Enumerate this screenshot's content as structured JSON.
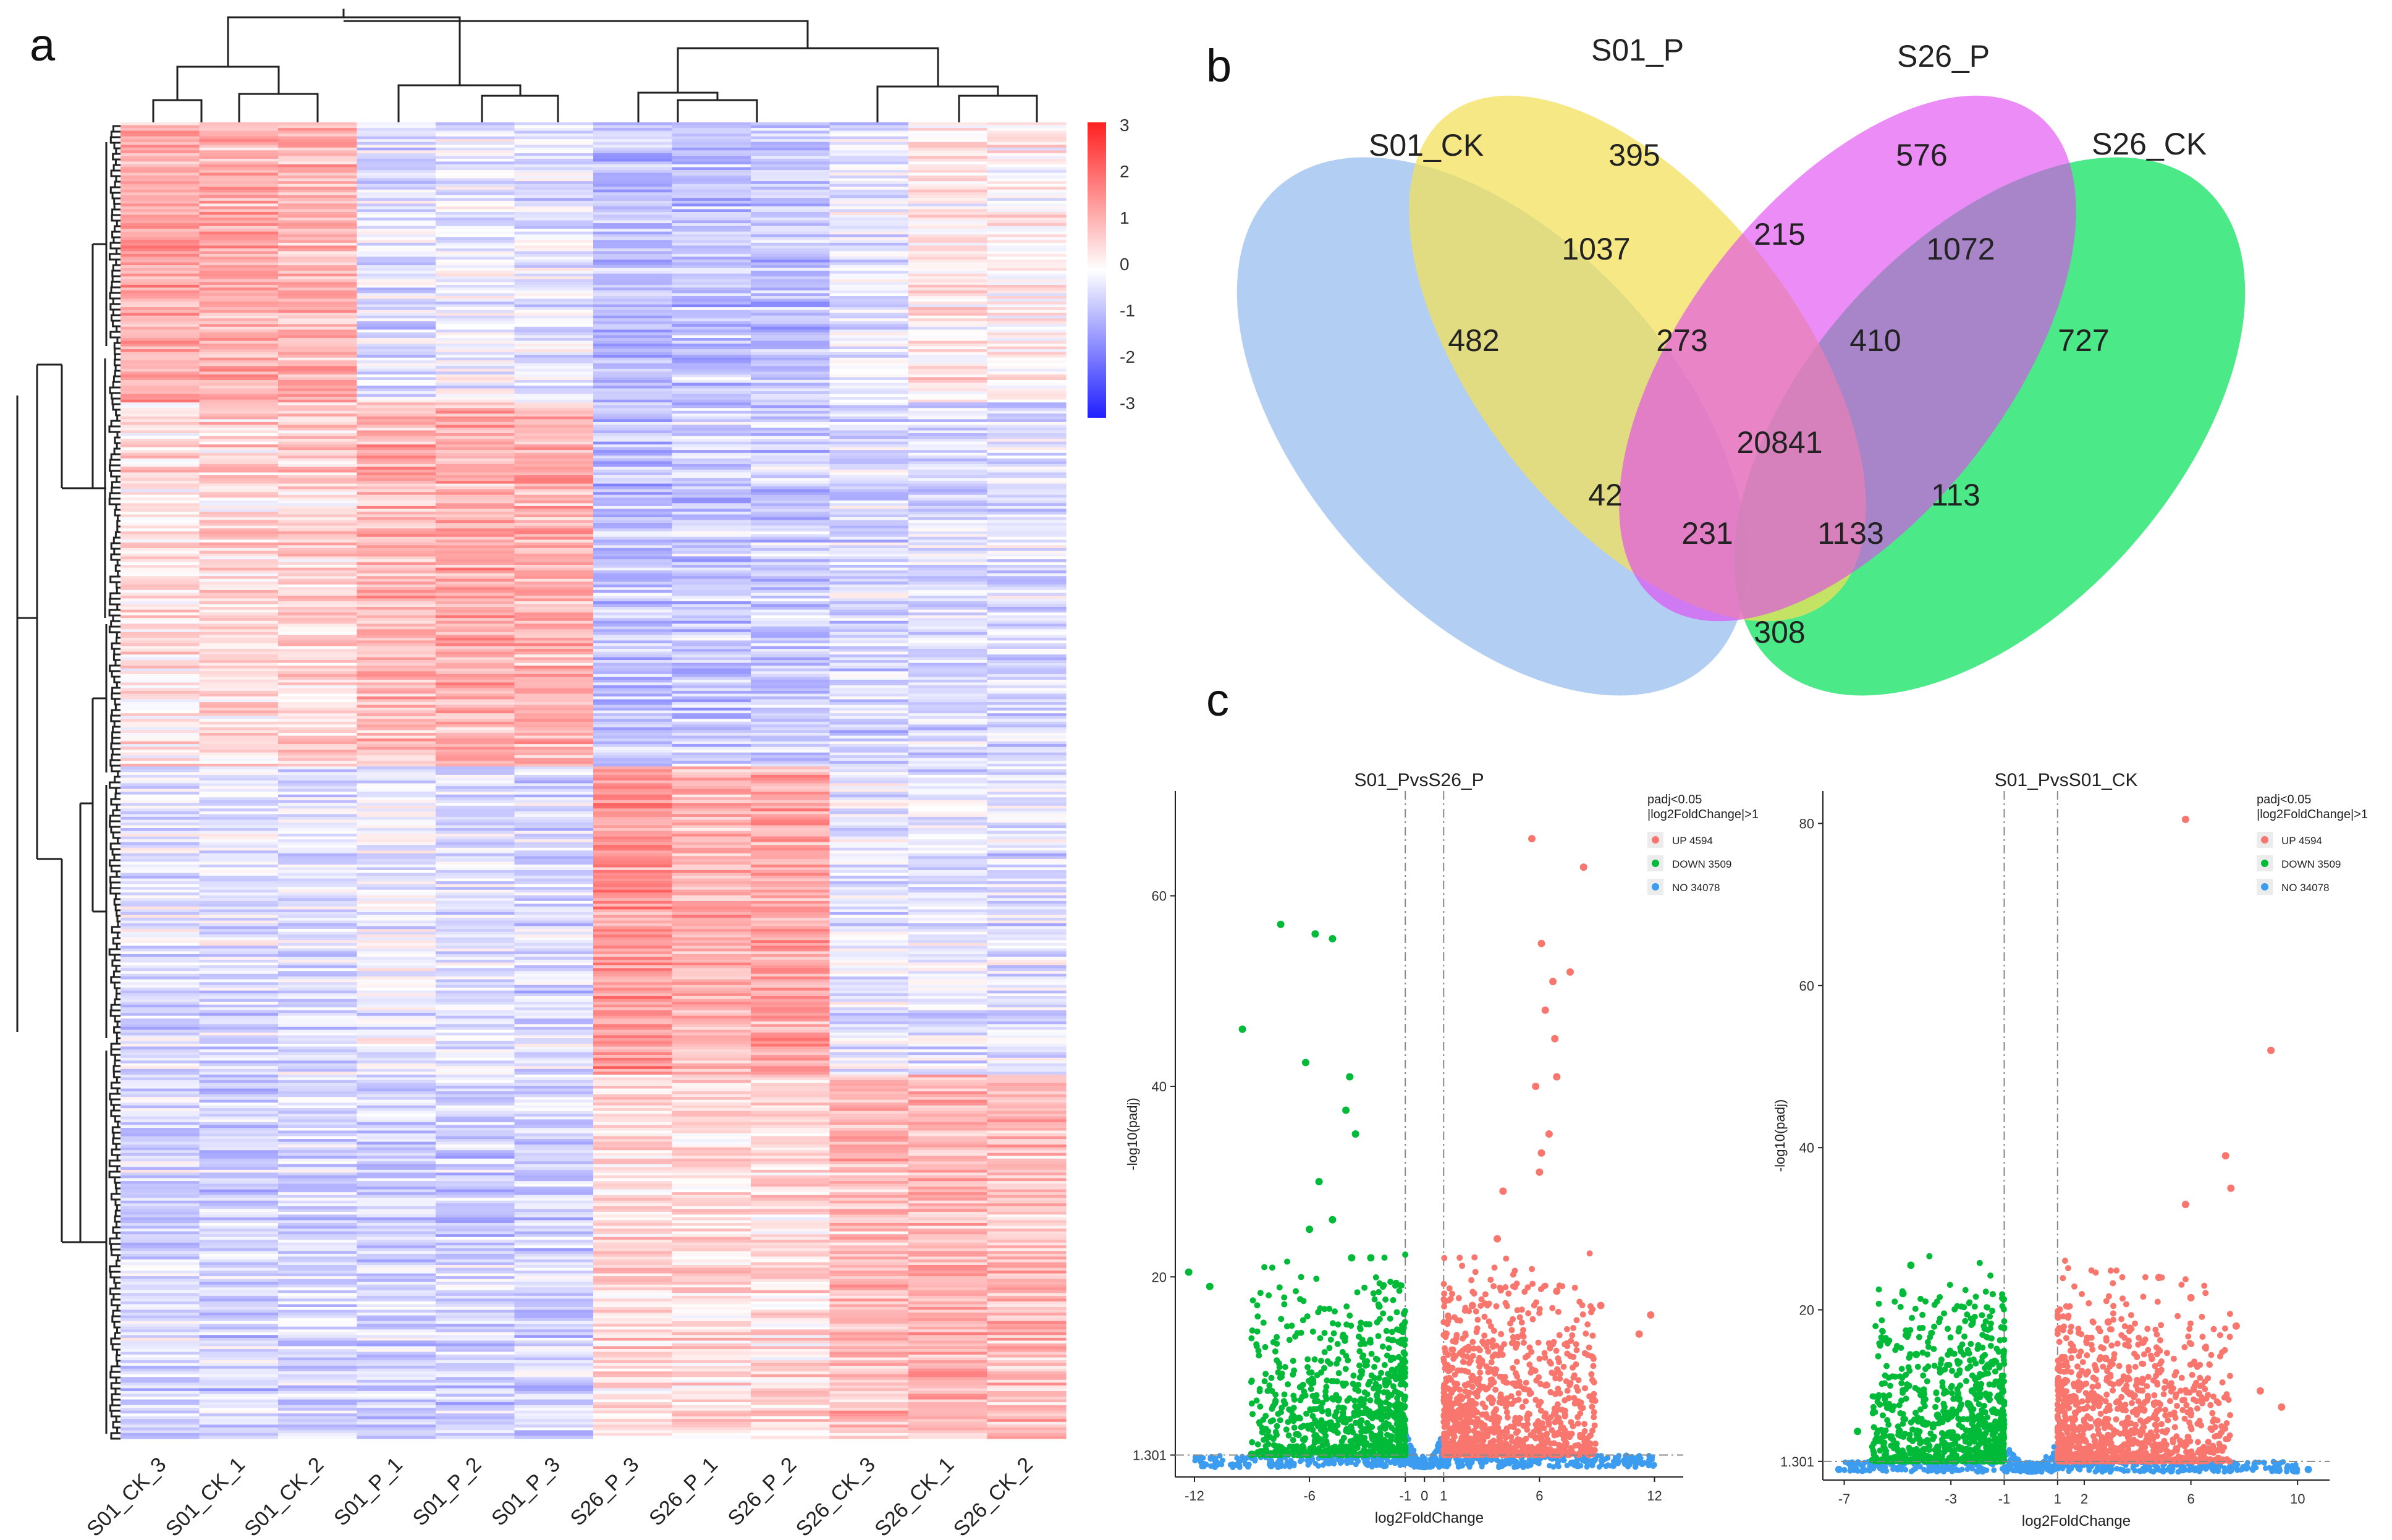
{
  "figure": {
    "panel_a": "a",
    "panel_b": "b",
    "panel_c": "c"
  },
  "chart_data": [
    {
      "type": "heatmap",
      "title": "",
      "samples": [
        "S01_CK_3",
        "S01_CK_1",
        "S01_CK_2",
        "S01_P_1",
        "S01_P_2",
        "S01_P_3",
        "S26_P_3",
        "S26_P_1",
        "S26_P_2",
        "S26_CK_3",
        "S26_CK_1",
        "S26_CK_2"
      ],
      "color_scale": {
        "min": -3,
        "max": 3,
        "ticks": [
          "3",
          "2",
          "1",
          "0",
          "-1",
          "-2",
          "-3"
        ],
        "low": "#1f1fff",
        "mid": "#ffffff",
        "high": "#ff2020"
      },
      "row_blocks": [
        {
          "name": "S01_CK high",
          "rows": 200,
          "values": [
            1.2,
            1.1,
            1.0,
            -0.4,
            -0.2,
            -0.3,
            -0.9,
            -0.8,
            -0.8,
            -0.3,
            0.3,
            0.2
          ]
        },
        {
          "name": "S01_P high",
          "rows": 260,
          "values": [
            0.4,
            0.5,
            0.6,
            1.0,
            1.1,
            1.0,
            -0.8,
            -0.7,
            -0.7,
            -0.5,
            -0.4,
            -0.4
          ]
        },
        {
          "name": "S26_P high",
          "rows": 220,
          "values": [
            -0.4,
            -0.4,
            -0.4,
            -0.2,
            -0.4,
            -0.5,
            1.4,
            1.0,
            1.2,
            -0.3,
            -0.4,
            -0.4
          ]
        },
        {
          "name": "S26_CK high",
          "rows": 260,
          "values": [
            -0.5,
            -0.6,
            -0.5,
            -0.6,
            -0.6,
            -0.6,
            0.5,
            0.5,
            0.5,
            0.9,
            1.0,
            0.9
          ]
        }
      ],
      "dendrogram": "hierarchical clustering of samples (top) and genes (left)"
    },
    {
      "type": "venn",
      "sets": [
        "S01_CK",
        "S01_P",
        "S26_P",
        "S26_CK"
      ],
      "regions": [
        {
          "sets": [
            "S01_CK"
          ],
          "value": "482"
        },
        {
          "sets": [
            "S01_P"
          ],
          "value": "395"
        },
        {
          "sets": [
            "S26_P"
          ],
          "value": "576"
        },
        {
          "sets": [
            "S26_CK"
          ],
          "value": "727"
        },
        {
          "sets": [
            "S01_CK",
            "S01_P"
          ],
          "value": "1037"
        },
        {
          "sets": [
            "S01_P",
            "S26_P"
          ],
          "value": "215"
        },
        {
          "sets": [
            "S26_P",
            "S26_CK"
          ],
          "value": "1072"
        },
        {
          "sets": [
            "S01_CK",
            "S01_P",
            "S26_P"
          ],
          "value": "273"
        },
        {
          "sets": [
            "S01_P",
            "S26_P",
            "S26_CK"
          ],
          "value": "410"
        },
        {
          "sets": [
            "S01_CK",
            "S01_P",
            "S26_P",
            "S26_CK"
          ],
          "value": "20841"
        },
        {
          "sets": [
            "S01_CK",
            "S26_P"
          ],
          "value": "42"
        },
        {
          "sets": [
            "S01_P",
            "S26_CK"
          ],
          "value": "113"
        },
        {
          "sets": [
            "S01_CK",
            "S26_P",
            "S26_CK"
          ],
          "value": "231"
        },
        {
          "sets": [
            "S01_CK",
            "S01_P",
            "S26_CK"
          ],
          "value": "1133"
        },
        {
          "sets": [
            "S01_CK",
            "S26_CK"
          ],
          "value": "308"
        }
      ],
      "colors": {
        "S01_CK": "#a9c6f0",
        "S01_P": "#f3e46e",
        "S26_P": "#e35ef2",
        "S26_CK": "#37e86e"
      }
    },
    {
      "type": "scatter",
      "title": "S01_PvsS26_P",
      "xlabel": "log2FoldChange",
      "ylabel": "-log10(padj)",
      "xlim": [
        -13,
        13.5
      ],
      "ylim": [
        -1,
        71
      ],
      "xticks": [
        -12,
        -6,
        -1,
        0,
        1,
        6,
        12
      ],
      "yticks": [
        1.301,
        20,
        40,
        60
      ],
      "ytick_labels": [
        "1.301",
        "20",
        "40",
        "60"
      ],
      "fc_threshold": 1,
      "padj_threshold": 1.301,
      "legend": {
        "title_line1": "padj<0.05",
        "title_line2": "|log2FoldChange|>1",
        "entries": [
          "UP 4594",
          "DOWN 3509",
          "NO 34078"
        ]
      },
      "series": [
        {
          "name": "UP",
          "count": 4594,
          "color": "#f8766d",
          "x": [
            5.6,
            6.1,
            8.3,
            7.6,
            6.7,
            6.3,
            6.8,
            6.9,
            5.8,
            6.5,
            6.1,
            6.0,
            9.2,
            11.8,
            11.2,
            6.9,
            4.1,
            3.8,
            2.5
          ],
          "y": [
            66.0,
            55.0,
            63.0,
            52.0,
            51.0,
            48.0,
            45.0,
            41.0,
            40.0,
            35.0,
            33.0,
            31.0,
            17.0,
            16.0,
            14.0,
            18.5,
            29.0,
            24.0,
            17.0
          ]
        },
        {
          "name": "DOWN",
          "count": 3509,
          "color": "#00ba38",
          "x": [
            -7.5,
            -5.7,
            -4.8,
            -9.5,
            -6.2,
            -3.9,
            -4.1,
            -3.6,
            -12.3,
            -11.2,
            -5.5,
            -4.8,
            -3.8,
            -2.8,
            -6.0
          ],
          "y": [
            57.0,
            56.0,
            55.5,
            46.0,
            42.5,
            41.0,
            37.5,
            35.0,
            20.5,
            19.0,
            30.0,
            26.0,
            22.0,
            22.0,
            25.0
          ]
        },
        {
          "name": "NO",
          "count": 34078,
          "color": "#3b9cf0",
          "x": [
            -11.5,
            -8.0,
            -5.0,
            -3.0,
            -1.0,
            0.2,
            1.0,
            3.0,
            5.0,
            8.0,
            10.5
          ],
          "y": [
            0.3,
            0.2,
            0.5,
            0.4,
            0.5,
            0.2,
            0.4,
            0.5,
            0.3,
            0.2,
            0.4
          ]
        }
      ]
    },
    {
      "type": "scatter",
      "title": "S01_PvsS01_CK",
      "xlabel": "log2FoldChange",
      "ylabel": "-log10(padj)",
      "xlim": [
        -7.8,
        11.2
      ],
      "ylim": [
        -1,
        84
      ],
      "xticks": [
        -7,
        -3,
        -1,
        1,
        2,
        6,
        10
      ],
      "yticks": [
        1.301,
        20,
        40,
        60,
        80
      ],
      "ytick_labels": [
        "1.301",
        "20",
        "40",
        "60",
        "80"
      ],
      "fc_threshold": 1,
      "padj_threshold": 1.301,
      "legend": {
        "title_line1": "padj<0.05",
        "title_line2": "|log2FoldChange|>1",
        "entries": [
          "UP 4594",
          "DOWN 3509",
          "NO 34078"
        ]
      },
      "series": [
        {
          "name": "UP",
          "count": 4594,
          "color": "#f8766d",
          "x": [
            5.8,
            9.0,
            7.3,
            7.5,
            5.8,
            4.8,
            6.0,
            8.6,
            9.4,
            2.8,
            4.2,
            3.3,
            7.7,
            2.9
          ],
          "y": [
            80.5,
            52.0,
            39.0,
            35.0,
            33.0,
            24.0,
            21.5,
            10.0,
            8.0,
            14.0,
            16.0,
            11.0,
            18.0,
            18.5
          ]
        },
        {
          "name": "DOWN",
          "count": 3509,
          "color": "#00ba38",
          "x": [
            -4.5,
            -4.8,
            -6.5,
            -2.2,
            -1.8,
            -2.7,
            -3.5,
            -5.5,
            -4.3
          ],
          "y": [
            25.5,
            22.0,
            5.0,
            10.0,
            6.0,
            9.0,
            7.0,
            4.5,
            14.5
          ]
        },
        {
          "name": "NO",
          "count": 34078,
          "color": "#3b9cf0",
          "x": [
            -7.2,
            -5.0,
            -3.0,
            -1.0,
            0.0,
            1.0,
            3.0,
            6.0,
            9.3,
            10.4
          ],
          "y": [
            0.3,
            0.4,
            0.5,
            0.4,
            0.2,
            0.5,
            0.3,
            0.4,
            0.2,
            0.3
          ]
        }
      ]
    }
  ]
}
